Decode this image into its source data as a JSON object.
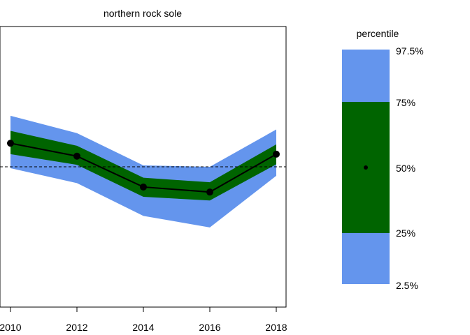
{
  "chart_data": {
    "type": "area",
    "title": "northern rock sole",
    "xlabel": "",
    "ylabel": "",
    "x": [
      2010,
      2012,
      2014,
      2016,
      2018
    ],
    "x_ticks": [
      "2010",
      "2012",
      "2014",
      "2016",
      "2018"
    ],
    "xlim": [
      2010,
      2018
    ],
    "ylim": [
      0,
      1
    ],
    "reference_line": 0.5,
    "median": [
      0.584,
      0.538,
      0.428,
      0.41,
      0.545
    ],
    "band_25_75": {
      "lower": [
        0.545,
        0.507,
        0.393,
        0.38,
        0.509
      ],
      "upper": [
        0.628,
        0.575,
        0.461,
        0.445,
        0.58
      ]
    },
    "band_2_5_97_5": {
      "lower": [
        0.495,
        0.442,
        0.325,
        0.284,
        0.468
      ],
      "upper": [
        0.682,
        0.62,
        0.505,
        0.5,
        0.633
      ]
    },
    "colors": {
      "outer_band": "#6495ED",
      "inner_band": "#006400",
      "line": "#000000",
      "reference_line": "#000000"
    },
    "grid": false,
    "legend": {
      "title": "percentile",
      "position": "right",
      "labels": [
        "97.5%",
        "75%",
        "50%",
        "25%",
        "2.5%"
      ]
    }
  }
}
